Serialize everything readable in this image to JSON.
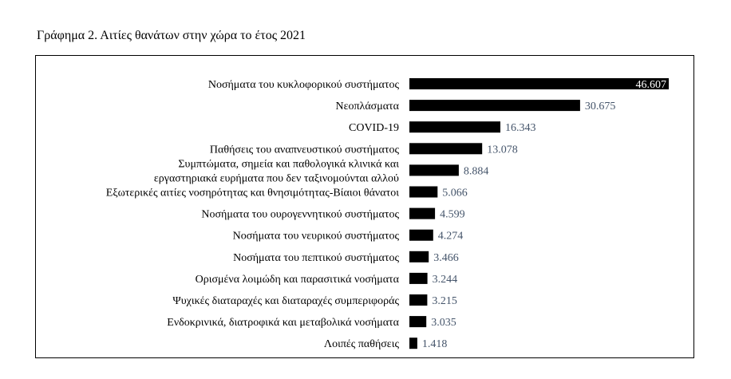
{
  "chart_data": {
    "type": "bar",
    "orientation": "horizontal",
    "title": "Γράφημα 2. Αιτίες θανάτων στην χώρα το έτος 2021",
    "categories": [
      [
        "Νοσήματα του κυκλοφορικού συστήματος"
      ],
      [
        "Νεοπλάσματα"
      ],
      [
        "COVID-19"
      ],
      [
        "Παθήσεις του αναπνευστικού συστήματος"
      ],
      [
        "Συμπτώματα, σημεία και παθολογικά κλινικά και",
        "εργαστηριακά  ευρήματα που δεν ταξινομούνται  αλλού"
      ],
      [
        "Εξωτερικές αιτίες νοσηρότητας και θνησιμότητας-Βίαιοι  θάνατοι"
      ],
      [
        "Νοσήματα του ουρογεννητικού συστήματος"
      ],
      [
        "Νοσήματα του νευρικού συστήματος"
      ],
      [
        "Νοσήματα του πεπτικού συστήματος"
      ],
      [
        "Ορισμένα λοιμώδη και παρασιτικά νοσήματα"
      ],
      [
        "Ψυχικές διαταραχές και διαταραχές συμπεριφοράς"
      ],
      [
        "Ενδοκρινικά,  διατροφικά και μεταβολικά νοσήματα"
      ],
      [
        "Λοιπές παθήσεις"
      ]
    ],
    "values": [
      46607,
      30675,
      16343,
      13078,
      8884,
      5066,
      4599,
      4274,
      3466,
      3244,
      3215,
      3035,
      1418
    ],
    "value_labels": [
      "46.607",
      "30.675",
      "16.343",
      "13.078",
      "8.884",
      "5.066",
      "4.599",
      "4.274",
      "3.466",
      "3.244",
      "3.215",
      "3.035",
      "1.418"
    ],
    "xlim": [
      0,
      46607
    ],
    "grid": false,
    "legend": "none",
    "bar_color": "#000000",
    "value_label_color": "#44546a",
    "inside_label_color": "#ffffff"
  }
}
